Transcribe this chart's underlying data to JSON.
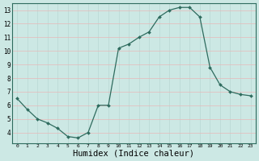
{
  "x": [
    0,
    1,
    2,
    3,
    4,
    5,
    6,
    7,
    8,
    9,
    10,
    11,
    12,
    13,
    14,
    15,
    16,
    17,
    18,
    19,
    20,
    21,
    22,
    23
  ],
  "y": [
    6.5,
    5.7,
    5.0,
    4.7,
    4.3,
    3.7,
    3.6,
    4.0,
    6.0,
    6.0,
    10.2,
    10.5,
    11.0,
    11.4,
    12.5,
    13.0,
    13.2,
    13.2,
    12.5,
    8.8,
    7.5,
    7.0,
    6.8,
    6.7
  ],
  "line_color": "#2e6b5e",
  "marker": "D",
  "marker_size": 2.0,
  "bg_color": "#cce8e4",
  "grid_color_major": "#b8d8d4",
  "grid_color_minor_h": "#e8b8b8",
  "xlabel": "Humidex (Indice chaleur)",
  "xlabel_fontsize": 7.5,
  "xlim": [
    -0.5,
    23.5
  ],
  "ylim": [
    3.2,
    13.5
  ],
  "yticks": [
    4,
    5,
    6,
    7,
    8,
    9,
    10,
    11,
    12,
    13
  ],
  "xticks": [
    0,
    1,
    2,
    3,
    4,
    5,
    6,
    7,
    8,
    9,
    10,
    11,
    12,
    13,
    14,
    15,
    16,
    17,
    18,
    19,
    20,
    21,
    22,
    23
  ]
}
